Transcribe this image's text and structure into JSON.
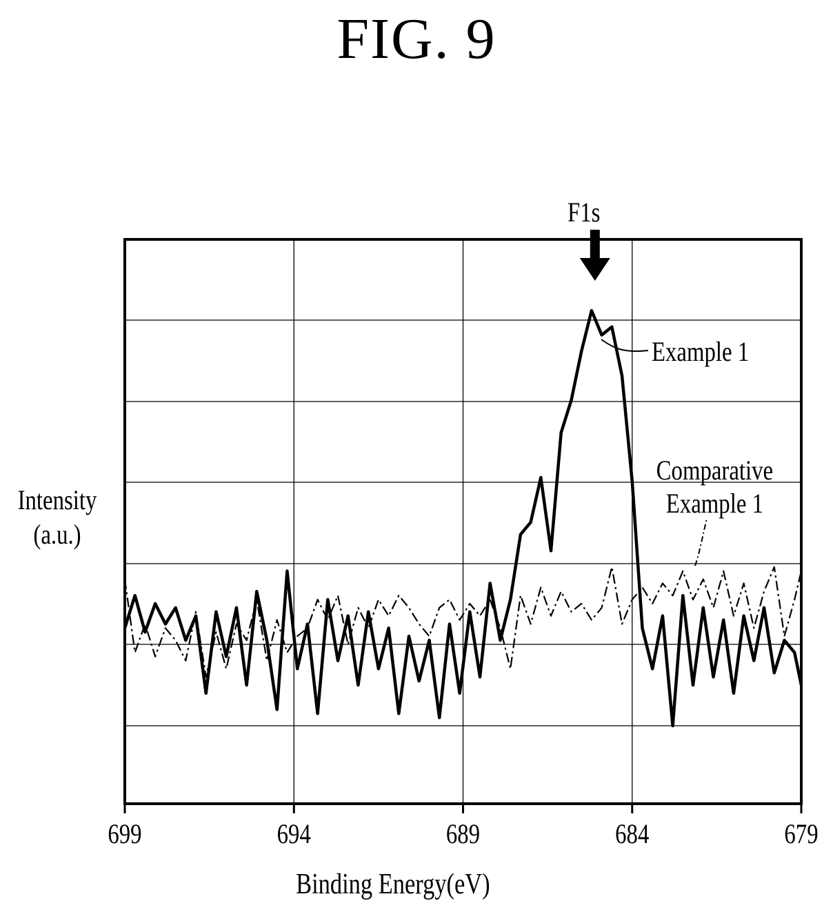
{
  "figure_title": "FIG. 9",
  "chart_data": {
    "type": "line",
    "title": "",
    "xlabel": "Binding Energy(eV)",
    "ylabel_lines": [
      "Intensity",
      "(a.u.)"
    ],
    "xlim": [
      699,
      679
    ],
    "x_reversed": true,
    "x_ticks": [
      "699",
      "694",
      "689",
      "684",
      "679"
    ],
    "y_ticks_labeled": false,
    "grid": true,
    "annotations": {
      "peak_label": "F1s",
      "peak_x": 685.1,
      "series_label_1": "Example 1",
      "series_label_2_lines": [
        "Comparative",
        "Example 1"
      ]
    },
    "series": [
      {
        "name": "Example 1",
        "style": "solid-thick",
        "color": "#000000",
        "points": [
          [
            699,
            0.2
          ],
          [
            698.7,
            0.6
          ],
          [
            698.4,
            0.15
          ],
          [
            698.1,
            0.5
          ],
          [
            697.8,
            0.25
          ],
          [
            697.5,
            0.45
          ],
          [
            697.2,
            0.05
          ],
          [
            696.9,
            0.35
          ],
          [
            696.6,
            -0.6
          ],
          [
            696.3,
            0.4
          ],
          [
            696.0,
            -0.15
          ],
          [
            695.7,
            0.45
          ],
          [
            695.4,
            -0.5
          ],
          [
            695.1,
            0.65
          ],
          [
            694.8,
            0.05
          ],
          [
            694.5,
            -0.8
          ],
          [
            694.2,
            0.9
          ],
          [
            693.9,
            -0.3
          ],
          [
            693.6,
            0.25
          ],
          [
            693.3,
            -0.85
          ],
          [
            693.0,
            0.55
          ],
          [
            692.7,
            -0.2
          ],
          [
            692.4,
            0.35
          ],
          [
            692.1,
            -0.5
          ],
          [
            691.8,
            0.4
          ],
          [
            691.5,
            -0.3
          ],
          [
            691.2,
            0.2
          ],
          [
            690.9,
            -0.85
          ],
          [
            690.6,
            0.1
          ],
          [
            690.3,
            -0.45
          ],
          [
            690.0,
            0.05
          ],
          [
            689.7,
            -0.9
          ],
          [
            689.4,
            0.25
          ],
          [
            689.1,
            -0.6
          ],
          [
            688.8,
            0.4
          ],
          [
            688.5,
            -0.4
          ],
          [
            688.2,
            0.75
          ],
          [
            687.9,
            0.05
          ],
          [
            687.6,
            0.55
          ],
          [
            687.3,
            1.35
          ],
          [
            687.0,
            1.5
          ],
          [
            686.7,
            2.05
          ],
          [
            686.4,
            1.15
          ],
          [
            686.1,
            2.6
          ],
          [
            685.8,
            3.0
          ],
          [
            685.5,
            3.6
          ],
          [
            685.2,
            4.1
          ],
          [
            684.9,
            3.8
          ],
          [
            684.6,
            3.9
          ],
          [
            684.3,
            3.3
          ],
          [
            684.0,
            2.0
          ],
          [
            683.7,
            0.2
          ],
          [
            683.4,
            -0.3
          ],
          [
            683.1,
            0.35
          ],
          [
            682.8,
            -1.0
          ],
          [
            682.5,
            0.6
          ],
          [
            682.2,
            -0.5
          ],
          [
            681.9,
            0.45
          ],
          [
            681.6,
            -0.4
          ],
          [
            681.3,
            0.3
          ],
          [
            681.0,
            -0.6
          ],
          [
            680.7,
            0.35
          ],
          [
            680.4,
            -0.2
          ],
          [
            680.1,
            0.45
          ],
          [
            679.8,
            -0.35
          ],
          [
            679.5,
            0.05
          ],
          [
            679.2,
            -0.1
          ],
          [
            679.0,
            -0.5
          ]
        ]
      },
      {
        "name": "Comparative Example 1",
        "style": "dash-dot",
        "color": "#000000",
        "points": [
          [
            699,
            0.8
          ],
          [
            698.7,
            -0.1
          ],
          [
            698.4,
            0.25
          ],
          [
            698.1,
            -0.15
          ],
          [
            697.8,
            0.2
          ],
          [
            697.5,
            0.05
          ],
          [
            697.2,
            -0.2
          ],
          [
            696.9,
            0.4
          ],
          [
            696.6,
            -0.4
          ],
          [
            696.3,
            0.15
          ],
          [
            696.0,
            -0.3
          ],
          [
            695.7,
            0.25
          ],
          [
            695.4,
            0.05
          ],
          [
            695.1,
            0.55
          ],
          [
            694.8,
            -0.2
          ],
          [
            694.5,
            0.3
          ],
          [
            694.2,
            -0.1
          ],
          [
            693.9,
            0.1
          ],
          [
            693.6,
            0.2
          ],
          [
            693.3,
            0.55
          ],
          [
            693.0,
            0.3
          ],
          [
            692.7,
            0.6
          ],
          [
            692.4,
            0.0
          ],
          [
            692.1,
            0.45
          ],
          [
            691.8,
            0.2
          ],
          [
            691.5,
            0.55
          ],
          [
            691.2,
            0.35
          ],
          [
            690.9,
            0.6
          ],
          [
            690.6,
            0.45
          ],
          [
            690.3,
            0.25
          ],
          [
            690.0,
            0.1
          ],
          [
            689.7,
            0.45
          ],
          [
            689.4,
            0.55
          ],
          [
            689.1,
            0.3
          ],
          [
            688.8,
            0.5
          ],
          [
            688.5,
            0.35
          ],
          [
            688.2,
            0.55
          ],
          [
            687.9,
            0.2
          ],
          [
            687.6,
            -0.3
          ],
          [
            687.3,
            0.6
          ],
          [
            687.0,
            0.25
          ],
          [
            686.7,
            0.7
          ],
          [
            686.4,
            0.35
          ],
          [
            686.1,
            0.65
          ],
          [
            685.8,
            0.4
          ],
          [
            685.5,
            0.5
          ],
          [
            685.2,
            0.3
          ],
          [
            684.9,
            0.45
          ],
          [
            684.6,
            0.95
          ],
          [
            684.3,
            0.25
          ],
          [
            684.0,
            0.55
          ],
          [
            683.7,
            0.7
          ],
          [
            683.4,
            0.5
          ],
          [
            683.1,
            0.75
          ],
          [
            682.8,
            0.6
          ],
          [
            682.5,
            0.9
          ],
          [
            682.2,
            0.55
          ],
          [
            681.9,
            0.8
          ],
          [
            681.6,
            0.45
          ],
          [
            681.3,
            0.9
          ],
          [
            681.0,
            0.35
          ],
          [
            680.7,
            0.75
          ],
          [
            680.4,
            0.2
          ],
          [
            680.1,
            0.65
          ],
          [
            679.8,
            0.95
          ],
          [
            679.5,
            0.1
          ],
          [
            679.2,
            0.55
          ],
          [
            679.0,
            0.9
          ]
        ]
      }
    ]
  }
}
